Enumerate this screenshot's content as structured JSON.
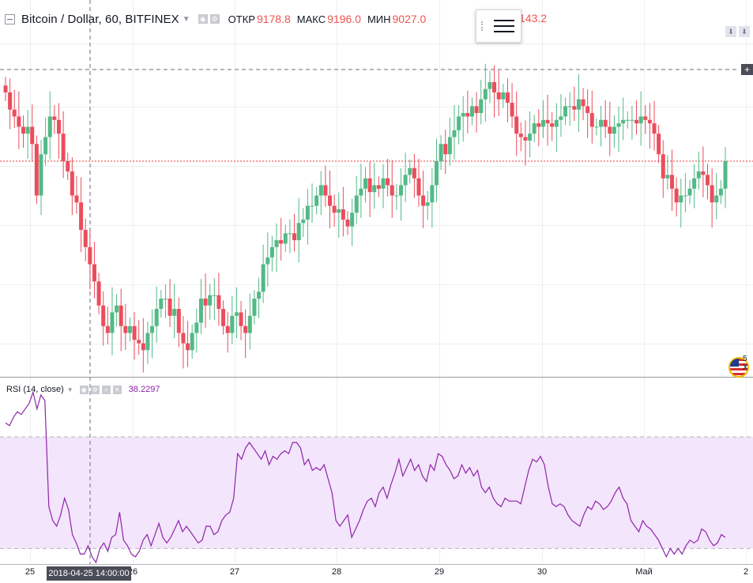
{
  "header": {
    "symbol_title": "Bitcoin / Dollar, 60, BITFINEX",
    "open_label": "ОТКР",
    "open_value": "9178.8",
    "high_label": "МАКС",
    "high_value": "9196.0",
    "low_label": "МИН",
    "low_value": "9027.0",
    "close_value": "143.2"
  },
  "rsi": {
    "label": "RSI (14, close)",
    "value": "38.2297"
  },
  "crosshair": {
    "time_label": "2018-04-25 14:00:00"
  },
  "side": {
    "flag_text": "5 X"
  },
  "chart_data": [
    {
      "type": "candlestick",
      "title": "Bitcoin / Dollar, 60, BITFINEX",
      "x_ticks": [
        "25",
        "26",
        "27",
        "28",
        "29",
        "30",
        "Май",
        "2"
      ],
      "colors": {
        "up": "#53b987",
        "down": "#eb4d5c",
        "last_line": "#e53935"
      },
      "last_price_level": 0.6,
      "series": [
        {
          "name": "candles",
          "o": [
            0.82,
            0.8,
            0.75,
            0.73,
            0.7,
            0.68,
            0.7,
            0.65,
            0.5,
            0.62,
            0.67,
            0.73,
            0.72,
            0.68,
            0.6,
            0.57,
            0.5,
            0.48,
            0.4,
            0.35,
            0.3,
            0.25,
            0.18,
            0.12,
            0.1,
            0.16,
            0.18,
            0.12,
            0.1,
            0.12,
            0.08,
            0.07,
            0.05,
            0.1,
            0.12,
            0.17,
            0.2,
            0.2,
            0.15,
            0.17,
            0.1,
            0.07,
            0.05,
            0.1,
            0.13,
            0.2,
            0.18,
            0.21,
            0.21,
            0.17,
            0.12,
            0.1,
            0.15,
            0.16,
            0.12,
            0.1,
            0.15,
            0.2,
            0.22,
            0.3,
            0.32,
            0.35,
            0.37,
            0.36,
            0.39,
            0.39,
            0.37,
            0.42,
            0.43,
            0.47,
            0.47,
            0.5,
            0.53,
            0.5,
            0.47,
            0.45,
            0.46,
            0.43,
            0.41,
            0.45,
            0.5,
            0.52,
            0.55,
            0.51,
            0.53,
            0.52,
            0.55,
            0.53,
            0.5,
            0.5,
            0.53,
            0.56,
            0.58,
            0.55,
            0.5,
            0.47,
            0.48,
            0.53,
            0.6,
            0.65,
            0.62,
            0.67,
            0.69,
            0.73,
            0.74,
            0.73,
            0.76,
            0.74,
            0.78,
            0.81,
            0.83,
            0.8,
            0.78,
            0.8,
            0.77,
            0.73,
            0.68,
            0.67,
            0.66,
            0.68,
            0.71,
            0.7,
            0.72,
            0.71,
            0.7,
            0.72,
            0.73,
            0.76,
            0.76,
            0.75,
            0.78,
            0.76,
            0.74,
            0.7,
            0.7,
            0.72,
            0.7,
            0.68,
            0.7,
            0.71,
            0.72,
            0.72,
            0.72,
            0.71,
            0.73,
            0.72,
            0.71,
            0.68,
            0.62,
            0.55,
            0.56,
            0.52,
            0.48,
            0.5,
            0.5,
            0.52,
            0.55,
            0.57,
            0.56,
            0.53,
            0.48,
            0.5,
            0.52
          ],
          "c": [
            0.8,
            0.75,
            0.73,
            0.7,
            0.68,
            0.7,
            0.65,
            0.5,
            0.62,
            0.67,
            0.73,
            0.72,
            0.68,
            0.6,
            0.57,
            0.5,
            0.48,
            0.4,
            0.35,
            0.3,
            0.25,
            0.18,
            0.12,
            0.1,
            0.16,
            0.18,
            0.12,
            0.1,
            0.12,
            0.08,
            0.07,
            0.05,
            0.1,
            0.12,
            0.17,
            0.2,
            0.2,
            0.15,
            0.17,
            0.1,
            0.07,
            0.05,
            0.1,
            0.13,
            0.2,
            0.18,
            0.21,
            0.21,
            0.17,
            0.12,
            0.1,
            0.15,
            0.16,
            0.12,
            0.1,
            0.15,
            0.2,
            0.22,
            0.3,
            0.32,
            0.35,
            0.37,
            0.36,
            0.39,
            0.39,
            0.37,
            0.42,
            0.43,
            0.47,
            0.47,
            0.5,
            0.53,
            0.5,
            0.47,
            0.45,
            0.46,
            0.43,
            0.41,
            0.45,
            0.5,
            0.52,
            0.55,
            0.51,
            0.53,
            0.52,
            0.55,
            0.53,
            0.5,
            0.5,
            0.53,
            0.56,
            0.58,
            0.55,
            0.5,
            0.47,
            0.48,
            0.53,
            0.6,
            0.65,
            0.62,
            0.67,
            0.69,
            0.73,
            0.74,
            0.73,
            0.76,
            0.74,
            0.78,
            0.81,
            0.83,
            0.8,
            0.78,
            0.8,
            0.77,
            0.73,
            0.68,
            0.67,
            0.66,
            0.68,
            0.71,
            0.7,
            0.72,
            0.71,
            0.7,
            0.72,
            0.73,
            0.76,
            0.76,
            0.75,
            0.78,
            0.76,
            0.74,
            0.7,
            0.7,
            0.72,
            0.7,
            0.68,
            0.7,
            0.71,
            0.72,
            0.72,
            0.72,
            0.71,
            0.73,
            0.72,
            0.71,
            0.68,
            0.62,
            0.55,
            0.56,
            0.52,
            0.48,
            0.5,
            0.5,
            0.52,
            0.55,
            0.57,
            0.56,
            0.53,
            0.48,
            0.5,
            0.52,
            0.6
          ]
        }
      ]
    },
    {
      "type": "line",
      "title": "RSI (14, close)",
      "band": [
        30,
        70
      ],
      "ylim": [
        25,
        85
      ],
      "colors": {
        "line": "#8e24aa",
        "band": "#f3e5fb"
      },
      "series": [
        {
          "name": "RSI",
          "values": [
            75,
            74,
            77,
            79,
            78,
            80,
            82,
            86,
            80,
            85,
            83,
            45,
            40,
            38,
            42,
            48,
            44,
            35,
            32,
            28,
            28,
            31,
            27,
            25,
            30,
            32,
            29,
            34,
            35,
            43,
            33,
            31,
            28,
            27,
            29,
            33,
            35,
            31,
            35,
            39,
            34,
            32,
            34,
            37,
            40,
            36,
            38,
            36,
            34,
            32,
            33,
            38,
            38,
            35,
            36,
            40,
            42,
            43,
            48,
            64,
            62,
            66,
            68,
            66,
            64,
            62,
            65,
            60,
            63,
            62,
            64,
            65,
            64,
            68,
            68,
            66,
            60,
            62,
            58,
            59,
            58,
            60,
            55,
            50,
            40,
            38,
            40,
            42,
            34,
            37,
            40,
            44,
            47,
            48,
            45,
            50,
            52,
            48,
            53,
            57,
            62,
            56,
            59,
            62,
            58,
            60,
            56,
            54,
            60,
            58,
            64,
            63,
            60,
            58,
            55,
            56,
            60,
            57,
            59,
            56,
            58,
            52,
            50,
            52,
            48,
            46,
            45,
            48,
            47,
            47,
            47,
            46,
            52,
            58,
            62,
            61,
            63,
            60,
            52,
            46,
            45,
            46,
            45,
            42,
            40,
            39,
            38,
            42,
            45,
            44,
            47,
            46,
            44,
            45,
            47,
            50,
            52,
            48,
            46,
            40,
            38,
            36,
            40,
            38,
            37,
            35,
            33,
            30,
            27,
            30,
            28,
            30,
            28,
            31,
            33,
            32,
            33,
            37,
            36,
            33,
            31,
            32,
            35,
            34
          ]
        }
      ]
    }
  ]
}
